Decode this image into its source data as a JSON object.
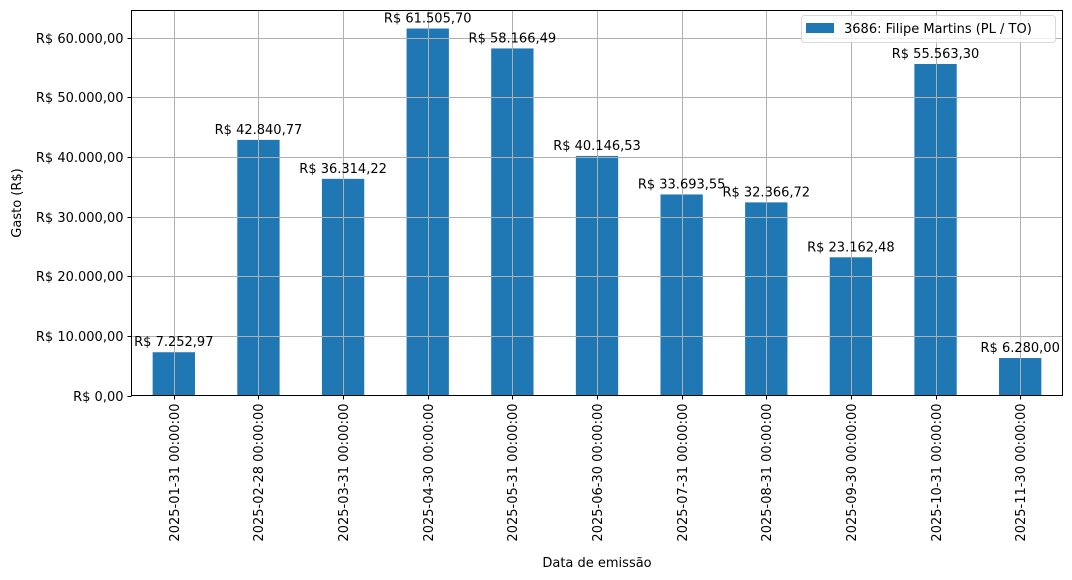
{
  "chart_data": {
    "type": "bar",
    "title": "",
    "xlabel": "Data de emissão",
    "ylabel": "Gasto (R$)",
    "categories": [
      "2025-01-31 00:00:00",
      "2025-02-28 00:00:00",
      "2025-03-31 00:00:00",
      "2025-04-30 00:00:00",
      "2025-05-31 00:00:00",
      "2025-06-30 00:00:00",
      "2025-07-31 00:00:00",
      "2025-08-31 00:00:00",
      "2025-09-30 00:00:00",
      "2025-10-31 00:00:00",
      "2025-11-30 00:00:00"
    ],
    "series": [
      {
        "name": "3686: Filipe Martins (PL / TO)",
        "color": "#1f77b4",
        "values": [
          7252.97,
          42840.77,
          36314.22,
          61505.7,
          58166.49,
          40146.53,
          33693.55,
          32366.72,
          23162.48,
          55563.3,
          6280.0
        ],
        "labels": [
          "R$ 7.252,97",
          "R$ 42.840,77",
          "R$ 36.314,22",
          "R$ 61.505,70",
          "R$ 58.166,49",
          "R$ 40.146,53",
          "R$ 33.693,55",
          "R$ 32.366,72",
          "R$ 23.162,48",
          "R$ 55.563,30",
          "R$ 6.280,00"
        ]
      }
    ],
    "yticks": [
      0,
      10000,
      20000,
      30000,
      40000,
      50000,
      60000
    ],
    "ytick_labels": [
      "R$ 0,00",
      "R$ 10.000,00",
      "R$ 20.000,00",
      "R$ 30.000,00",
      "R$ 40.000,00",
      "R$ 50.000,00",
      "R$ 60.000,00"
    ],
    "ylim": [
      0,
      64580
    ],
    "grid": true,
    "legend_position": "upper right",
    "colors": {
      "bar": "#1f77b4",
      "grid": "#b0b0b0",
      "axis": "#000000"
    }
  }
}
